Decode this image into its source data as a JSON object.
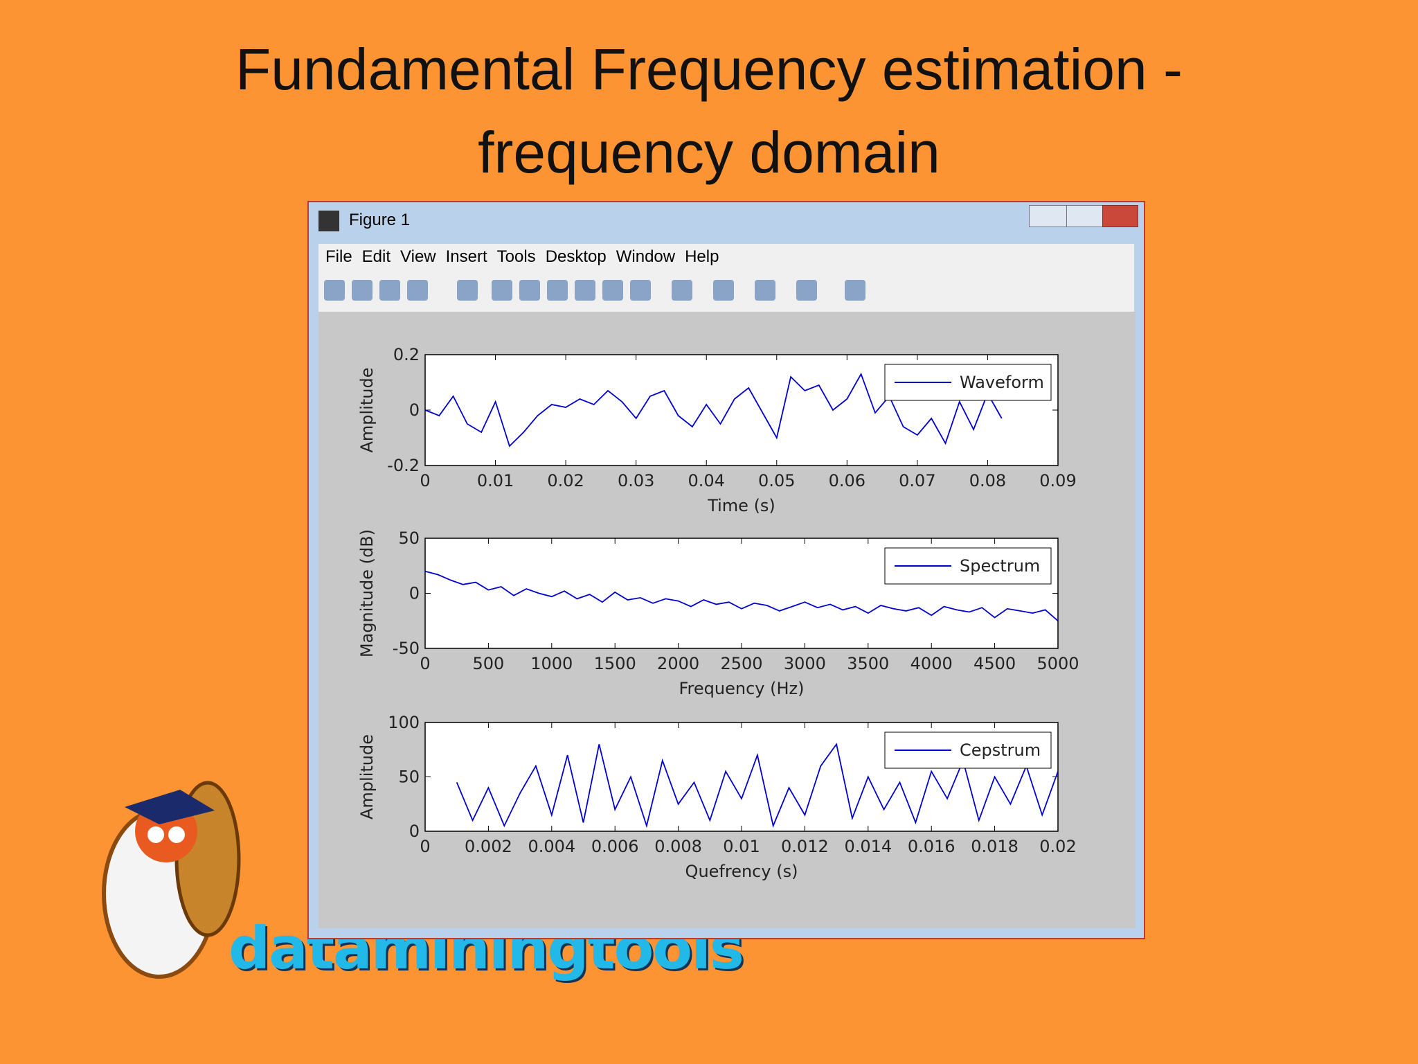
{
  "slide": {
    "title": "Fundamental Frequency estimation - frequency domain",
    "logo": "dataminingtools"
  },
  "window": {
    "title": "Figure 1",
    "menu": [
      "File",
      "Edit",
      "View",
      "Insert",
      "Tools",
      "Desktop",
      "Window",
      "Help"
    ]
  },
  "chart_data": [
    {
      "type": "line",
      "xlabel": "Time (s)",
      "ylabel": "Amplitude",
      "legend": "upper right",
      "xlim": [
        0,
        0.09
      ],
      "ylim": [
        -0.2,
        0.2
      ],
      "xticks": [
        0,
        0.01,
        0.02,
        0.03,
        0.04,
        0.05,
        0.06,
        0.07,
        0.08,
        0.09
      ],
      "yticks": [
        -0.2,
        0,
        0.2
      ],
      "series": [
        {
          "name": "Waveform",
          "color": "#0000cc",
          "x": [
            0,
            0.002,
            0.004,
            0.006,
            0.008,
            0.01,
            0.012,
            0.014,
            0.016,
            0.018,
            0.02,
            0.022,
            0.024,
            0.026,
            0.028,
            0.03,
            0.032,
            0.034,
            0.036,
            0.038,
            0.04,
            0.042,
            0.044,
            0.046,
            0.048,
            0.05,
            0.052,
            0.054,
            0.056,
            0.058,
            0.06,
            0.062,
            0.064,
            0.066,
            0.068,
            0.07,
            0.072,
            0.074,
            0.076,
            0.078,
            0.08,
            0.082
          ],
          "values": [
            0,
            -0.02,
            0.05,
            -0.05,
            -0.08,
            0.03,
            -0.13,
            -0.08,
            -0.02,
            0.02,
            0.01,
            0.04,
            0.02,
            0.07,
            0.03,
            -0.03,
            0.05,
            0.07,
            -0.02,
            -0.06,
            0.02,
            -0.05,
            0.04,
            0.08,
            -0.01,
            -0.1,
            0.12,
            0.07,
            0.09,
            0,
            0.04,
            0.13,
            -0.01,
            0.05,
            -0.06,
            -0.09,
            -0.03,
            -0.12,
            0.03,
            -0.07,
            0.06,
            -0.03
          ]
        }
      ]
    },
    {
      "type": "line",
      "xlabel": "Frequency (Hz)",
      "ylabel": "Magnitude (dB)",
      "legend": "upper right",
      "xlim": [
        0,
        5000
      ],
      "ylim": [
        -50,
        50
      ],
      "xticks": [
        0,
        500,
        1000,
        1500,
        2000,
        2500,
        3000,
        3500,
        4000,
        4500,
        5000
      ],
      "yticks": [
        -50,
        0,
        50
      ],
      "series": [
        {
          "name": "Spectrum",
          "color": "#0000cc",
          "x": [
            0,
            100,
            200,
            300,
            400,
            500,
            600,
            700,
            800,
            900,
            1000,
            1100,
            1200,
            1300,
            1400,
            1500,
            1600,
            1700,
            1800,
            1900,
            2000,
            2100,
            2200,
            2300,
            2400,
            2500,
            2600,
            2700,
            2800,
            2900,
            3000,
            3100,
            3200,
            3300,
            3400,
            3500,
            3600,
            3700,
            3800,
            3900,
            4000,
            4100,
            4200,
            4300,
            4400,
            4500,
            4600,
            4700,
            4800,
            4900,
            5000
          ],
          "values": [
            20,
            17,
            12,
            8,
            10,
            3,
            6,
            -2,
            4,
            0,
            -3,
            2,
            -5,
            -1,
            -8,
            1,
            -6,
            -4,
            -9,
            -5,
            -7,
            -12,
            -6,
            -10,
            -8,
            -14,
            -9,
            -11,
            -16,
            -12,
            -8,
            -13,
            -10,
            -15,
            -12,
            -18,
            -11,
            -14,
            -16,
            -13,
            -20,
            -12,
            -15,
            -17,
            -13,
            -22,
            -14,
            -16,
            -18,
            -15,
            -25
          ]
        }
      ]
    },
    {
      "type": "line",
      "xlabel": "Quefrency (s)",
      "ylabel": "Amplitude",
      "legend": "upper right",
      "xlim": [
        0,
        0.02
      ],
      "ylim": [
        0,
        100
      ],
      "xticks": [
        0,
        0.002,
        0.004,
        0.006,
        0.008,
        0.01,
        0.012,
        0.014,
        0.016,
        0.018,
        0.02
      ],
      "yticks": [
        0,
        50,
        100
      ],
      "series": [
        {
          "name": "Cepstrum",
          "color": "#0000cc",
          "x": [
            0.001,
            0.0015,
            0.002,
            0.0025,
            0.003,
            0.0035,
            0.004,
            0.0045,
            0.005,
            0.0055,
            0.006,
            0.0065,
            0.007,
            0.0075,
            0.008,
            0.0085,
            0.009,
            0.0095,
            0.01,
            0.0105,
            0.011,
            0.0115,
            0.012,
            0.0125,
            0.013,
            0.0135,
            0.014,
            0.0145,
            0.015,
            0.0155,
            0.016,
            0.0165,
            0.017,
            0.0175,
            0.018,
            0.0185,
            0.019,
            0.0195,
            0.02
          ],
          "values": [
            45,
            10,
            40,
            5,
            35,
            60,
            15,
            70,
            8,
            80,
            20,
            50,
            5,
            65,
            25,
            45,
            10,
            55,
            30,
            70,
            5,
            40,
            15,
            60,
            80,
            12,
            50,
            20,
            45,
            8,
            55,
            30,
            65,
            10,
            50,
            25,
            60,
            15,
            55
          ]
        }
      ]
    }
  ]
}
